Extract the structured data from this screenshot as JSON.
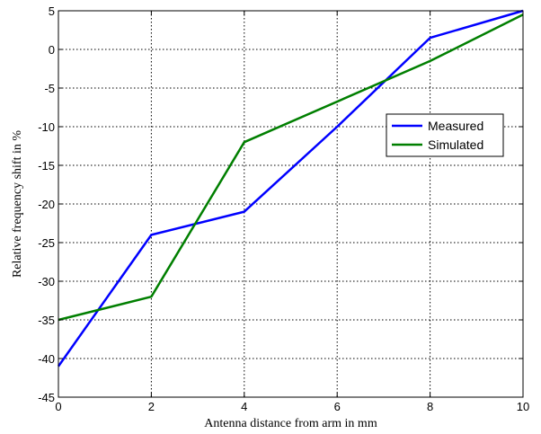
{
  "chart_data": {
    "type": "line",
    "title": "",
    "xlabel": "Antenna distance from arm in mm",
    "ylabel": "Relative frequency shift in %",
    "xlim": [
      0,
      10
    ],
    "ylim": [
      -45,
      5
    ],
    "xticks": [
      0,
      2,
      4,
      6,
      8,
      10
    ],
    "yticks": [
      5,
      0,
      -5,
      -10,
      -15,
      -20,
      -25,
      -30,
      -35,
      -40,
      -45
    ],
    "grid": true,
    "legend_position": "center-right",
    "series": [
      {
        "name": "Measured",
        "color": "#0000ff",
        "x": [
          0,
          2,
          4,
          6,
          8,
          10
        ],
        "y": [
          -41,
          -24,
          -21,
          -10,
          1.5,
          5
        ]
      },
      {
        "name": "Simulated",
        "color": "#007f00",
        "x": [
          0,
          2,
          4,
          8,
          10
        ],
        "y": [
          -35,
          -32,
          -12,
          -1.5,
          4.5
        ]
      }
    ]
  }
}
